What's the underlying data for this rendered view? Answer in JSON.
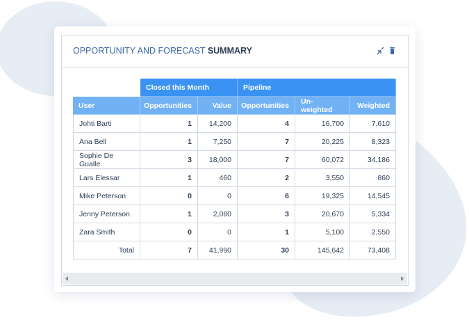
{
  "header": {
    "title": [
      "OPPORTUNITY AND FORECAST",
      "SUMMARY"
    ]
  },
  "table": {
    "groups": [
      "Closed this Month",
      "Pipeline"
    ],
    "columns": [
      "User",
      "Opportunities",
      "Value",
      "Opportunities",
      "Un-weighted",
      "Weighted"
    ],
    "rows": [
      [
        "Johti Barti",
        "1",
        "14,200",
        "4",
        "16,700",
        "7,610"
      ],
      [
        "Ana Bell",
        "1",
        "7,250",
        "7",
        "20,225",
        "8,323"
      ],
      [
        "Sophie De Gualle",
        "3",
        "18,000",
        "7",
        "60,072",
        "34,186"
      ],
      [
        "Lars Elessar",
        "1",
        "460",
        "2",
        "3,550",
        "860"
      ],
      [
        "Mike Peterson",
        "0",
        "0",
        "6",
        "19,325",
        "14,545"
      ],
      [
        "Jenny Peterson",
        "1",
        "2,080",
        "3",
        "20,670",
        "5,334"
      ],
      [
        "Zara Smith",
        "0",
        "0",
        "1",
        "5,100",
        "2,550"
      ]
    ],
    "total": [
      "Total",
      "7",
      "41,990",
      "30",
      "145,642",
      "73,408"
    ]
  }
}
